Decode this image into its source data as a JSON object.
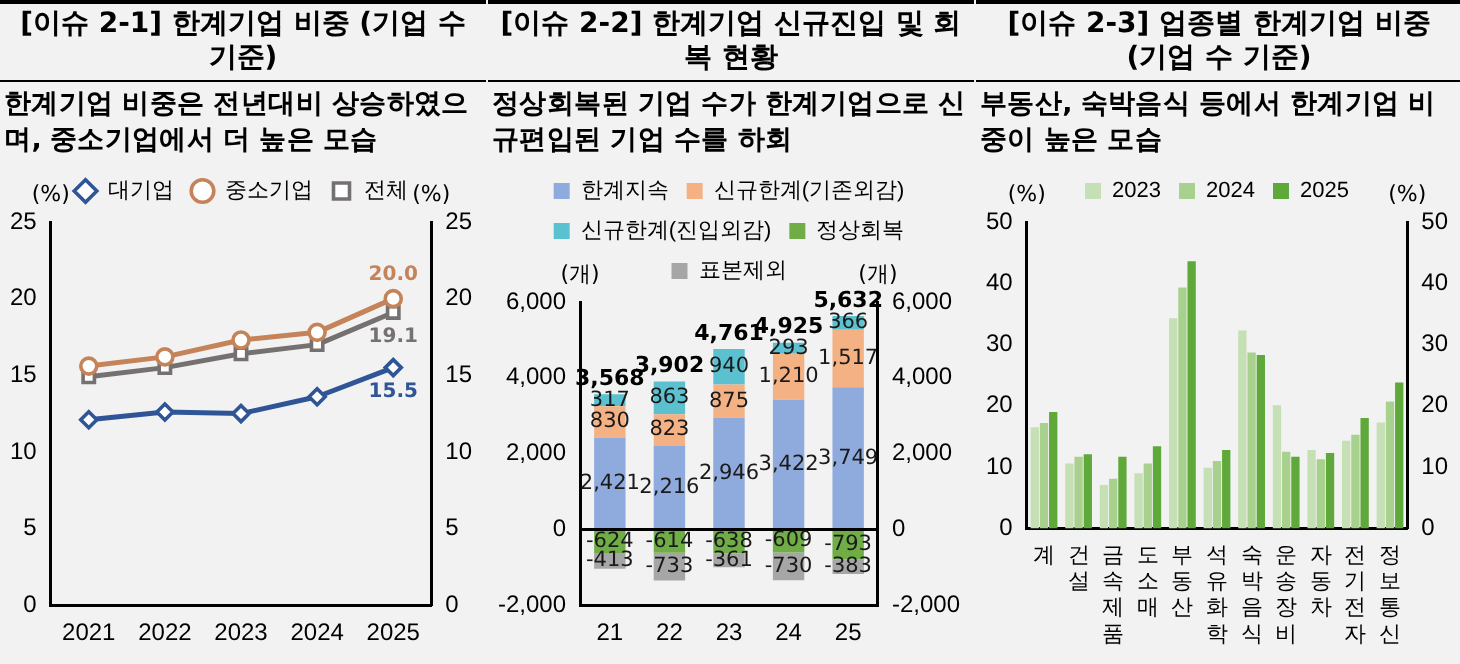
{
  "chart_data": [
    {
      "type": "line",
      "title": "[이슈 2-1] 한계기업 비중 (기업 수 기준)",
      "subtitle": "한계기업 비중은 전년대비 상승하였으며, 중소기업에서 더 높은 모습",
      "categories": [
        "2021",
        "2022",
        "2023",
        "2024",
        "2025"
      ],
      "legend": "top",
      "ylabel": "(%)",
      "y2label": "(%)",
      "ylim": [
        0,
        25
      ],
      "yticks": [
        0,
        5,
        10,
        15,
        20,
        25
      ],
      "y2lim": [
        0,
        25
      ],
      "y2ticks": [
        0,
        5,
        10,
        15,
        20,
        25
      ],
      "series": [
        {
          "name": "대기업",
          "color": "#2f5597",
          "marker": "diamond",
          "values": [
            12.1,
            12.6,
            12.5,
            13.6,
            15.5
          ],
          "value_labels": [
            null,
            null,
            null,
            null,
            "15.5"
          ]
        },
        {
          "name": "중소기업",
          "color": "#c5835a",
          "marker": "circle",
          "values": [
            15.6,
            16.2,
            17.3,
            17.8,
            20.0
          ],
          "value_labels": [
            null,
            null,
            null,
            null,
            "20.0"
          ]
        },
        {
          "name": "전체",
          "color": "#767171",
          "marker": "square",
          "values": [
            14.9,
            15.5,
            16.4,
            17.0,
            19.1
          ],
          "value_labels": [
            null,
            null,
            null,
            null,
            "19.1"
          ]
        }
      ]
    },
    {
      "type": "bar",
      "stacked": true,
      "title": "[이슈 2-2] 한계기업 신규진입 및 회복 현황",
      "subtitle": "정상회복된 기업 수가 한계기업으로 신규편입된 기업 수를 하회",
      "categories": [
        "21",
        "22",
        "23",
        "24",
        "25"
      ],
      "legend": "top",
      "ylabel": "(개)",
      "y2label": "(개)",
      "ylim": [
        -2000,
        6000
      ],
      "yticks": [
        {
          "value": -2000,
          "label": "-2,000"
        },
        0,
        {
          "value": 2000,
          "label": "2,000"
        },
        {
          "value": 4000,
          "label": "4,000"
        },
        {
          "value": 6000,
          "label": "6,000"
        }
      ],
      "y2lim": [
        -2000,
        6000
      ],
      "y2ticks": [
        {
          "value": -2000,
          "label": "-2,000"
        },
        0,
        {
          "value": 2000,
          "label": "2,000"
        },
        {
          "value": 4000,
          "label": "4,000"
        },
        {
          "value": 6000,
          "label": "6,000"
        }
      ],
      "annotations": [
        {
          "text": "3,568",
          "x": "21",
          "y": 3568
        },
        {
          "text": "3,902",
          "x": "22",
          "y": 3902
        },
        {
          "text": "4,761",
          "x": "23",
          "y": 4761
        },
        {
          "text": "4,925",
          "x": "24",
          "y": 4925
        },
        {
          "text": "5,632",
          "x": "25",
          "y": 5632
        }
      ],
      "ref_lines": [
        {
          "axis": "y",
          "value": 0,
          "color": "#000000"
        }
      ],
      "series": [
        {
          "name": "한계지속",
          "color": "#8faadc",
          "values": [
            2421,
            2216,
            2946,
            3422,
            3749
          ],
          "value_labels": [
            "2,421",
            "2,216",
            "2,946",
            "3,422",
            "3,749"
          ]
        },
        {
          "name": "신규한계(기존외감)",
          "color": "#f4b183",
          "values": [
            830,
            823,
            875,
            1210,
            1517
          ],
          "value_labels": [
            "830",
            "823",
            "875",
            "1,210",
            "1,517"
          ]
        },
        {
          "name": "신규한계(진입외감)",
          "color": "#5bc0cf",
          "values": [
            317,
            863,
            940,
            293,
            366
          ],
          "value_labels": [
            "317",
            "863",
            "940",
            "293",
            "366"
          ]
        },
        {
          "name": "정상회복",
          "color": "#70ad47",
          "values": [
            -624,
            -614,
            -638,
            -609,
            -793
          ],
          "value_labels": [
            "-624",
            "-614",
            "-638",
            "-609",
            "-793"
          ]
        },
        {
          "name": "표본제외",
          "color": "#a6a6a6",
          "values": [
            -413,
            -733,
            -361,
            -730,
            -383
          ],
          "value_labels": [
            "-413",
            "-733",
            "-361",
            "-730",
            "-383"
          ]
        }
      ]
    },
    {
      "type": "bar",
      "title": "[이슈 2-3] 업종별 한계기업 비중 (기업 수 기준)",
      "subtitle": "부동산, 숙박음식 등에서 한계기업 비중이 높은 모습",
      "categories": [
        "계",
        "건설",
        "금속제품",
        "도소매",
        "부동산",
        "석유화학",
        "숙박음식",
        "운송장비",
        "자동차",
        "전기전자",
        "정보통신"
      ],
      "legend": "top",
      "ylabel": "(%)",
      "y2label": "(%)",
      "ylim": [
        0,
        50
      ],
      "yticks": [
        0,
        10,
        20,
        30,
        40,
        50
      ],
      "y2lim": [
        0,
        50
      ],
      "y2ticks": [
        0,
        10,
        20,
        30,
        40,
        50
      ],
      "series": [
        {
          "name": "2023",
          "color": "#c5e0b4",
          "values": [
            16.5,
            10.6,
            7.1,
            9.0,
            34.3,
            9.9,
            32.3,
            20.1,
            12.8,
            14.3,
            17.3
          ]
        },
        {
          "name": "2024",
          "color": "#a9d18e",
          "values": [
            17.2,
            11.7,
            8.1,
            10.6,
            39.3,
            11.0,
            28.7,
            12.5,
            11.3,
            15.3,
            20.7
          ]
        },
        {
          "name": "2025",
          "color": "#5fa83a",
          "values": [
            19.0,
            12.1,
            11.7,
            13.4,
            43.6,
            12.8,
            28.3,
            11.7,
            12.3,
            18.0,
            23.8
          ]
        }
      ]
    }
  ]
}
